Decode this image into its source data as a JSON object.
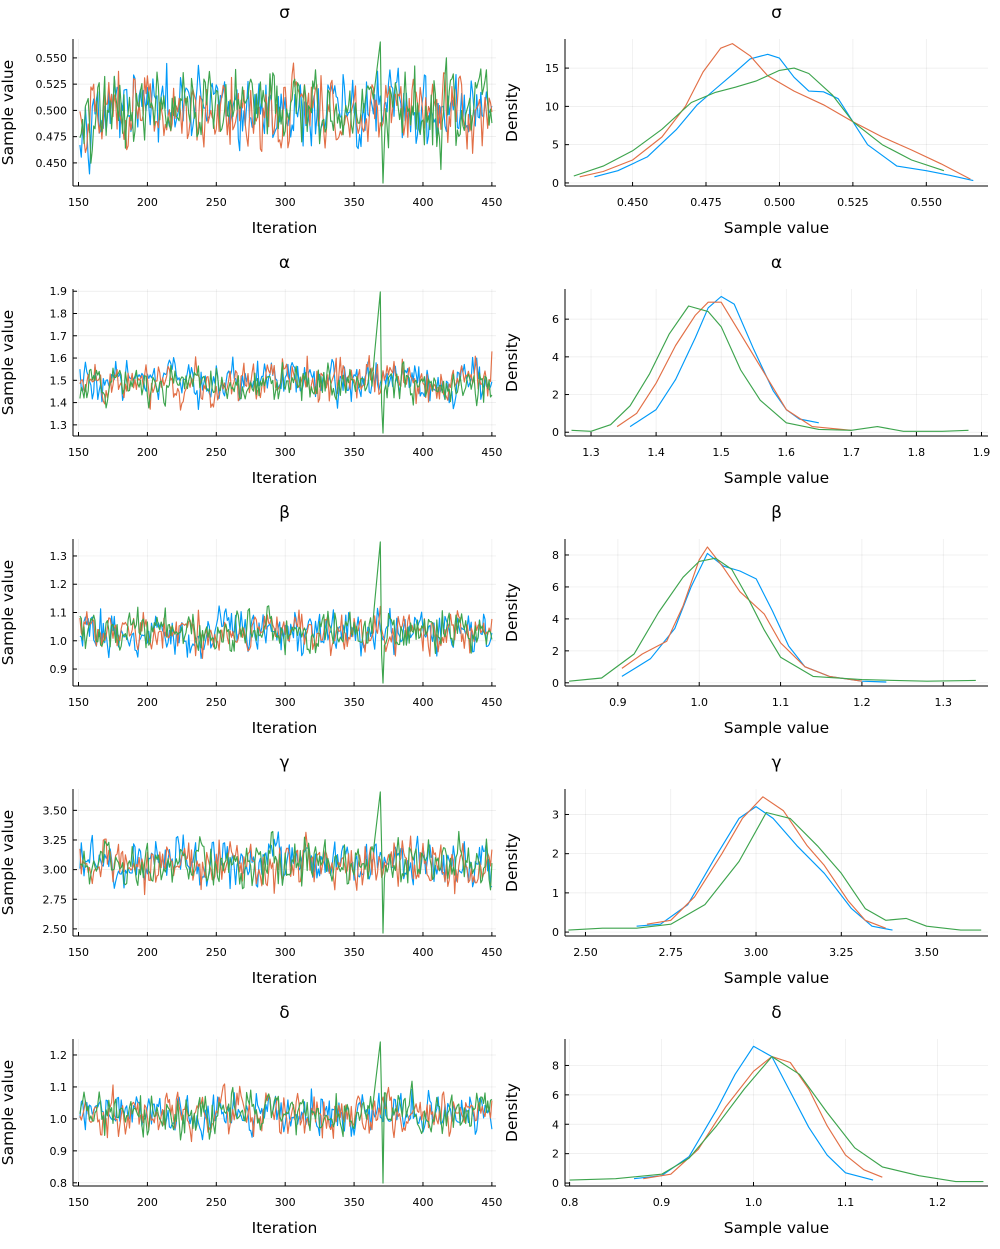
{
  "colors": {
    "chain_1": "#009af9",
    "chain_2": "#e26f46",
    "chain_3": "#3da44d"
  },
  "chart_data": [
    {
      "type": "line",
      "title": "σ",
      "xlabel": "Iteration",
      "ylabel": "Sample value",
      "xlim": [
        146,
        453
      ],
      "ylim": [
        0.428,
        0.568
      ],
      "xticks": [
        150,
        200,
        250,
        300,
        350,
        400,
        450
      ],
      "yticks": [
        0.45,
        0.475,
        0.5,
        0.525,
        0.55
      ],
      "ytick_labels": [
        "0.450",
        "0.475",
        "0.500",
        "0.525",
        "0.550"
      ],
      "chain_params": {
        "center": 0.5,
        "spread": 0.021,
        "min": 0.432,
        "max": 0.566
      },
      "series": [
        {
          "color_key": "chain_1"
        },
        {
          "color_key": "chain_2"
        },
        {
          "color_key": "chain_3"
        }
      ]
    },
    {
      "type": "line",
      "title": "σ",
      "xlabel": "Sample value",
      "ylabel": "Density",
      "xlim": [
        0.427,
        0.571
      ],
      "ylim": [
        -0.4,
        18.8
      ],
      "xticks": [
        0.45,
        0.475,
        0.5,
        0.525,
        0.55
      ],
      "xtick_labels": [
        "0.450",
        "0.475",
        "0.500",
        "0.525",
        "0.550"
      ],
      "yticks": [
        0,
        5,
        10,
        15
      ],
      "series": [
        {
          "color_key": "chain_1",
          "x": [
            0.437,
            0.445,
            0.455,
            0.465,
            0.472,
            0.478,
            0.485,
            0.49,
            0.496,
            0.5,
            0.505,
            0.51,
            0.515,
            0.52,
            0.525,
            0.53,
            0.54,
            0.55,
            0.558,
            0.566
          ],
          "y": [
            0.8,
            1.6,
            3.4,
            7,
            10.2,
            12.2,
            14.5,
            16.2,
            16.8,
            16.3,
            13.8,
            12,
            11.9,
            11,
            8,
            5,
            2.2,
            1.6,
            1,
            0.3
          ]
        },
        {
          "color_key": "chain_2",
          "x": [
            0.432,
            0.44,
            0.45,
            0.46,
            0.468,
            0.474,
            0.48,
            0.484,
            0.49,
            0.496,
            0.505,
            0.515,
            0.525,
            0.535,
            0.545,
            0.555,
            0.565
          ],
          "y": [
            0.8,
            1.5,
            3,
            6,
            10,
            14.5,
            17.6,
            18.2,
            16.6,
            14,
            12,
            10.2,
            8,
            6,
            4.3,
            2.5,
            0.5
          ]
        },
        {
          "color_key": "chain_3",
          "x": [
            0.43,
            0.44,
            0.45,
            0.46,
            0.47,
            0.478,
            0.485,
            0.492,
            0.5,
            0.505,
            0.51,
            0.518,
            0.525,
            0.535,
            0.545,
            0.556
          ],
          "y": [
            0.9,
            2.2,
            4.2,
            7,
            10.5,
            11.8,
            12.5,
            13.3,
            14.7,
            15,
            14.3,
            11.5,
            8,
            5,
            3,
            1.6
          ]
        }
      ]
    },
    {
      "type": "line",
      "title": "α",
      "xlabel": "Iteration",
      "ylabel": "Sample value",
      "xlim": [
        146,
        453
      ],
      "ylim": [
        1.25,
        1.91
      ],
      "xticks": [
        150,
        200,
        250,
        300,
        350,
        400,
        450
      ],
      "yticks": [
        1.3,
        1.4,
        1.5,
        1.6,
        1.7,
        1.8,
        1.9
      ],
      "ytick_labels": [
        "1.3",
        "1.4",
        "1.5",
        "1.6",
        "1.7",
        "1.8",
        "1.9"
      ],
      "chain_params": {
        "center": 1.49,
        "spread": 0.055,
        "min": 1.31,
        "max": 1.7
      },
      "series": [
        {
          "color_key": "chain_1"
        },
        {
          "color_key": "chain_2"
        },
        {
          "color_key": "chain_3"
        }
      ]
    },
    {
      "type": "line",
      "title": "α",
      "xlabel": "Sample value",
      "ylabel": "Density",
      "xlim": [
        1.26,
        1.91
      ],
      "ylim": [
        -0.2,
        7.6
      ],
      "xticks": [
        1.3,
        1.4,
        1.5,
        1.6,
        1.7,
        1.8,
        1.9
      ],
      "xtick_labels": [
        "1.3",
        "1.4",
        "1.5",
        "1.6",
        "1.7",
        "1.8",
        "1.9"
      ],
      "yticks": [
        0,
        2,
        4,
        6
      ],
      "series": [
        {
          "color_key": "chain_1",
          "x": [
            1.36,
            1.4,
            1.43,
            1.46,
            1.48,
            1.5,
            1.52,
            1.55,
            1.58,
            1.6,
            1.62,
            1.65
          ],
          "y": [
            0.3,
            1.2,
            2.8,
            5,
            6.6,
            7.2,
            6.8,
            4.4,
            2.2,
            1.2,
            0.7,
            0.5
          ]
        },
        {
          "color_key": "chain_2",
          "x": [
            1.34,
            1.37,
            1.4,
            1.43,
            1.46,
            1.48,
            1.5,
            1.53,
            1.56,
            1.6,
            1.64,
            1.7
          ],
          "y": [
            0.3,
            1,
            2.6,
            4.6,
            6.2,
            6.9,
            6.9,
            5.2,
            3.5,
            1.2,
            0.3,
            0.1
          ]
        },
        {
          "color_key": "chain_3",
          "x": [
            1.27,
            1.3,
            1.33,
            1.36,
            1.39,
            1.42,
            1.45,
            1.48,
            1.5,
            1.53,
            1.56,
            1.6,
            1.65,
            1.7,
            1.74,
            1.78,
            1.84,
            1.88
          ],
          "y": [
            0.1,
            0.05,
            0.4,
            1.4,
            3.1,
            5.2,
            6.7,
            6.4,
            5.6,
            3.3,
            1.7,
            0.5,
            0.15,
            0.1,
            0.3,
            0.05,
            0.05,
            0.1
          ]
        }
      ]
    },
    {
      "type": "line",
      "title": "β",
      "xlabel": "Iteration",
      "ylabel": "Sample value",
      "xlim": [
        146,
        453
      ],
      "ylim": [
        0.84,
        1.36
      ],
      "xticks": [
        150,
        200,
        250,
        300,
        350,
        400,
        450
      ],
      "yticks": [
        0.9,
        1.0,
        1.1,
        1.2,
        1.3
      ],
      "ytick_labels": [
        "0.9",
        "1.0",
        "1.1",
        "1.2",
        "1.3"
      ],
      "chain_params": {
        "center": 1.03,
        "spread": 0.042,
        "min": 0.87,
        "max": 1.23
      },
      "series": [
        {
          "color_key": "chain_1"
        },
        {
          "color_key": "chain_2"
        },
        {
          "color_key": "chain_3"
        }
      ]
    },
    {
      "type": "line",
      "title": "β",
      "xlabel": "Sample value",
      "ylabel": "Density",
      "xlim": [
        0.835,
        1.355
      ],
      "ylim": [
        -0.2,
        9.0
      ],
      "xticks": [
        0.9,
        1.0,
        1.1,
        1.2,
        1.3
      ],
      "xtick_labels": [
        "0.9",
        "1.0",
        "1.1",
        "1.2",
        "1.3"
      ],
      "yticks": [
        0,
        2,
        4,
        6,
        8
      ],
      "series": [
        {
          "color_key": "chain_1",
          "x": [
            0.905,
            0.94,
            0.97,
            0.99,
            1.01,
            1.03,
            1.05,
            1.07,
            1.09,
            1.11,
            1.13,
            1.16,
            1.2,
            1.23
          ],
          "y": [
            0.4,
            1.5,
            3.4,
            6,
            8.1,
            7.3,
            7,
            6.5,
            4.5,
            2.3,
            1,
            0.4,
            0.1,
            0.05
          ]
        },
        {
          "color_key": "chain_2",
          "x": [
            0.905,
            0.93,
            0.96,
            0.98,
            1.0,
            1.01,
            1.03,
            1.05,
            1.08,
            1.1,
            1.13,
            1.16,
            1.2
          ],
          "y": [
            0.9,
            1.8,
            2.6,
            4.8,
            7.7,
            8.5,
            7.2,
            5.7,
            4.3,
            2.5,
            1,
            0.4,
            0.1
          ]
        },
        {
          "color_key": "chain_3",
          "x": [
            0.84,
            0.88,
            0.92,
            0.95,
            0.98,
            1.0,
            1.02,
            1.04,
            1.06,
            1.08,
            1.1,
            1.14,
            1.2,
            1.28,
            1.34
          ],
          "y": [
            0.1,
            0.3,
            1.8,
            4.4,
            6.6,
            7.6,
            7.8,
            7.1,
            5.3,
            3.3,
            1.6,
            0.4,
            0.2,
            0.1,
            0.15
          ]
        }
      ]
    },
    {
      "type": "line",
      "title": "γ",
      "xlabel": "Iteration",
      "ylabel": "Sample value",
      "xlim": [
        146,
        453
      ],
      "ylim": [
        2.44,
        3.68
      ],
      "xticks": [
        150,
        200,
        250,
        300,
        350,
        400,
        450
      ],
      "yticks": [
        2.5,
        2.75,
        3.0,
        3.25,
        3.5
      ],
      "ytick_labels": [
        "2.50",
        "2.75",
        "3.00",
        "3.25",
        "3.50"
      ],
      "chain_params": {
        "center": 3.05,
        "spread": 0.11,
        "min": 2.64,
        "max": 3.46
      },
      "series": [
        {
          "color_key": "chain_1"
        },
        {
          "color_key": "chain_2"
        },
        {
          "color_key": "chain_3"
        }
      ]
    },
    {
      "type": "line",
      "title": "γ",
      "xlabel": "Sample value",
      "ylabel": "Density",
      "xlim": [
        2.44,
        3.68
      ],
      "ylim": [
        -0.1,
        3.65
      ],
      "xticks": [
        2.5,
        2.75,
        3.0,
        3.25,
        3.5
      ],
      "xtick_labels": [
        "2.50",
        "2.75",
        "3.00",
        "3.25",
        "3.50"
      ],
      "yticks": [
        0,
        1,
        2,
        3
      ],
      "series": [
        {
          "color_key": "chain_1",
          "x": [
            2.65,
            2.72,
            2.8,
            2.88,
            2.95,
            3.0,
            3.05,
            3.12,
            3.2,
            3.28,
            3.34,
            3.4
          ],
          "y": [
            0.15,
            0.2,
            0.7,
            1.9,
            2.9,
            3.2,
            2.9,
            2.2,
            1.5,
            0.6,
            0.15,
            0.05
          ]
        },
        {
          "color_key": "chain_2",
          "x": [
            2.68,
            2.75,
            2.82,
            2.9,
            2.96,
            3.02,
            3.08,
            3.15,
            3.2,
            3.27,
            3.32,
            3.38
          ],
          "y": [
            0.2,
            0.3,
            0.9,
            2,
            2.9,
            3.45,
            3.1,
            2.2,
            1.7,
            0.8,
            0.3,
            0.1
          ]
        },
        {
          "color_key": "chain_3",
          "x": [
            2.45,
            2.55,
            2.65,
            2.75,
            2.85,
            2.95,
            3.03,
            3.1,
            3.18,
            3.25,
            3.32,
            3.38,
            3.44,
            3.5,
            3.6,
            3.66
          ],
          "y": [
            0.05,
            0.1,
            0.1,
            0.2,
            0.7,
            1.8,
            3.05,
            2.9,
            2.2,
            1.5,
            0.6,
            0.3,
            0.35,
            0.15,
            0.05,
            0.05
          ]
        }
      ]
    },
    {
      "type": "line",
      "title": "δ",
      "xlabel": "Iteration",
      "ylabel": "Sample value",
      "xlim": [
        146,
        453
      ],
      "ylim": [
        0.79,
        1.25
      ],
      "xticks": [
        150,
        200,
        250,
        300,
        350,
        400,
        450
      ],
      "yticks": [
        0.8,
        0.9,
        1.0,
        1.1,
        1.2
      ],
      "ytick_labels": [
        "0.8",
        "0.9",
        "1.0",
        "1.1",
        "1.2"
      ],
      "chain_params": {
        "center": 1.02,
        "spread": 0.038,
        "min": 0.87,
        "max": 1.17
      },
      "series": [
        {
          "color_key": "chain_1"
        },
        {
          "color_key": "chain_2"
        },
        {
          "color_key": "chain_3"
        }
      ]
    },
    {
      "type": "line",
      "title": "δ",
      "xlabel": "Sample value",
      "ylabel": "Density",
      "xlim": [
        0.795,
        1.255
      ],
      "ylim": [
        -0.2,
        9.8
      ],
      "xticks": [
        0.8,
        0.9,
        1.0,
        1.1,
        1.2
      ],
      "xtick_labels": [
        "0.8",
        "0.9",
        "1.0",
        "1.1",
        "1.2"
      ],
      "yticks": [
        0,
        2,
        4,
        6,
        8
      ],
      "series": [
        {
          "color_key": "chain_1",
          "x": [
            0.87,
            0.9,
            0.93,
            0.96,
            0.98,
            1.0,
            1.02,
            1.04,
            1.06,
            1.08,
            1.1,
            1.13
          ],
          "y": [
            0.3,
            0.5,
            1.8,
            5,
            7.4,
            9.3,
            8.6,
            6.2,
            3.8,
            1.9,
            0.7,
            0.2
          ]
        },
        {
          "color_key": "chain_2",
          "x": [
            0.88,
            0.91,
            0.94,
            0.97,
            1.0,
            1.02,
            1.04,
            1.06,
            1.08,
            1.1,
            1.12,
            1.14
          ],
          "y": [
            0.3,
            0.6,
            2.3,
            5.2,
            7.6,
            8.6,
            8.2,
            6.4,
            3.9,
            1.9,
            0.9,
            0.4
          ]
        },
        {
          "color_key": "chain_3",
          "x": [
            0.8,
            0.85,
            0.9,
            0.93,
            0.96,
            0.99,
            1.02,
            1.05,
            1.08,
            1.11,
            1.14,
            1.18,
            1.22,
            1.25
          ],
          "y": [
            0.2,
            0.3,
            0.6,
            1.7,
            3.9,
            6.4,
            8.6,
            7.4,
            4.8,
            2.4,
            1.1,
            0.5,
            0.1,
            0.1
          ]
        }
      ]
    }
  ]
}
